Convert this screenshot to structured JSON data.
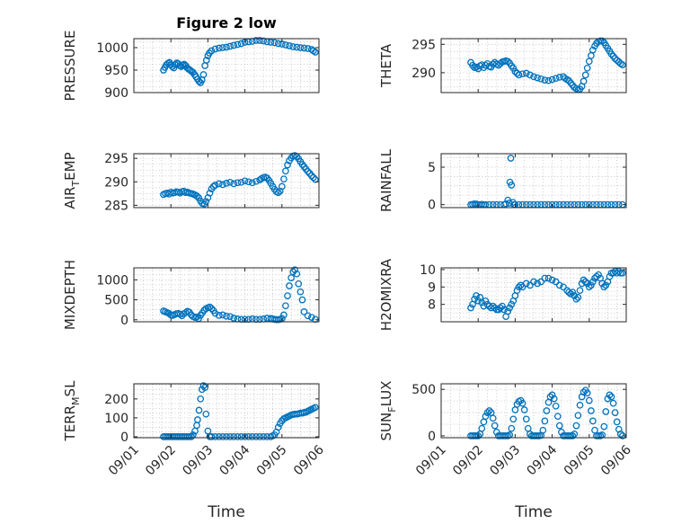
{
  "figure": {
    "title": "Figure 2 low",
    "xlabel": "Time",
    "x_tick_labels": [
      "09/01",
      "09/02",
      "09/03",
      "09/04",
      "09/05",
      "09/06"
    ],
    "marker_color": "#0072bd",
    "marker": "open-circle"
  },
  "chart_data": [
    {
      "type": "scatter",
      "ylabel": "PRESSURE",
      "title": "Figure 2 low",
      "xlim": [
        1,
        6
      ],
      "ylim": [
        900,
        1020
      ],
      "yticks": [
        900,
        950,
        1000
      ],
      "grid": true,
      "x": [
        1.8,
        1.84,
        1.88,
        1.92,
        1.96,
        2.0,
        2.04,
        2.08,
        2.12,
        2.16,
        2.2,
        2.24,
        2.28,
        2.32,
        2.36,
        2.4,
        2.44,
        2.48,
        2.52,
        2.56,
        2.6,
        2.64,
        2.68,
        2.72,
        2.76,
        2.8,
        2.84,
        2.88,
        2.92,
        2.96,
        3.0,
        3.04,
        3.1,
        3.2,
        3.3,
        3.4,
        3.5,
        3.6,
        3.7,
        3.8,
        3.9,
        4.0,
        4.1,
        4.2,
        4.3,
        4.4,
        4.5,
        4.6,
        4.7,
        4.8,
        4.9,
        5.0,
        5.1,
        5.2,
        5.3,
        5.4,
        5.5,
        5.6,
        5.7,
        5.8,
        5.85,
        5.9
      ],
      "y": [
        950,
        956,
        962,
        965,
        967,
        962,
        958,
        955,
        962,
        966,
        964,
        960,
        958,
        961,
        963,
        960,
        955,
        952,
        950,
        947,
        945,
        940,
        935,
        930,
        925,
        922,
        928,
        940,
        960,
        972,
        982,
        988,
        993,
        997,
        999,
        1000,
        1001,
        1003,
        1005,
        1007,
        1009,
        1012,
        1013,
        1014,
        1016,
        1016,
        1015,
        1013,
        1012,
        1011,
        1009,
        1008,
        1006,
        1004,
        1002,
        1001,
        1000,
        999,
        998,
        996,
        993,
        990
      ]
    },
    {
      "type": "scatter",
      "ylabel": "THETA",
      "xlim": [
        1,
        6
      ],
      "ylim": [
        286.5,
        296
      ],
      "yticks": [
        290,
        295
      ],
      "grid": true,
      "x": [
        1.8,
        1.85,
        1.9,
        1.95,
        2.0,
        2.05,
        2.1,
        2.15,
        2.2,
        2.25,
        2.3,
        2.35,
        2.4,
        2.45,
        2.5,
        2.55,
        2.6,
        2.65,
        2.7,
        2.75,
        2.8,
        2.85,
        2.9,
        2.95,
        3.0,
        3.05,
        3.1,
        3.2,
        3.3,
        3.4,
        3.5,
        3.6,
        3.7,
        3.8,
        3.9,
        4.0,
        4.1,
        4.2,
        4.3,
        4.35,
        4.4,
        4.45,
        4.5,
        4.55,
        4.6,
        4.65,
        4.7,
        4.75,
        4.8,
        4.85,
        4.9,
        4.95,
        5.0,
        5.05,
        5.1,
        5.15,
        5.2,
        5.25,
        5.3,
        5.35,
        5.4,
        5.45,
        5.5,
        5.55,
        5.6,
        5.65,
        5.7,
        5.75,
        5.8,
        5.85,
        5.9
      ],
      "y": [
        291.8,
        291.3,
        290.9,
        291.0,
        290.7,
        291.2,
        291.4,
        290.9,
        291.3,
        291.6,
        291.1,
        291.0,
        291.5,
        291.8,
        291.5,
        291.3,
        291.6,
        291.9,
        292.0,
        292.1,
        292.0,
        291.7,
        291.2,
        290.8,
        290.2,
        289.9,
        289.6,
        289.8,
        289.9,
        289.6,
        289.3,
        289.1,
        288.9,
        288.7,
        288.6,
        288.8,
        289.0,
        289.2,
        289.3,
        289.0,
        288.8,
        288.6,
        288.2,
        287.8,
        287.4,
        287.2,
        287.0,
        287.1,
        287.6,
        288.5,
        289.6,
        290.8,
        292.0,
        293.0,
        294.0,
        294.7,
        295.2,
        295.5,
        295.6,
        295.6,
        295.3,
        294.8,
        294.3,
        293.8,
        293.3,
        292.9,
        292.5,
        292.2,
        291.9,
        291.6,
        291.4
      ]
    },
    {
      "type": "scatter",
      "ylabel": "AIR_TEMP",
      "xlim": [
        1,
        6
      ],
      "ylim": [
        284.5,
        296
      ],
      "yticks": [
        285,
        290,
        295
      ],
      "grid": true,
      "x": [
        1.8,
        1.85,
        1.9,
        1.95,
        2.0,
        2.05,
        2.1,
        2.15,
        2.2,
        2.25,
        2.3,
        2.35,
        2.4,
        2.45,
        2.5,
        2.55,
        2.6,
        2.65,
        2.7,
        2.75,
        2.8,
        2.85,
        2.9,
        2.95,
        3.0,
        3.05,
        3.1,
        3.15,
        3.2,
        3.3,
        3.4,
        3.5,
        3.6,
        3.7,
        3.8,
        3.9,
        4.0,
        4.1,
        4.2,
        4.3,
        4.4,
        4.45,
        4.5,
        4.55,
        4.6,
        4.65,
        4.7,
        4.75,
        4.8,
        4.85,
        4.9,
        4.95,
        5.0,
        5.05,
        5.1,
        5.15,
        5.2,
        5.25,
        5.3,
        5.35,
        5.4,
        5.45,
        5.5,
        5.55,
        5.6,
        5.65,
        5.7,
        5.75,
        5.8,
        5.85,
        5.9
      ],
      "y": [
        287.3,
        287.5,
        287.6,
        287.4,
        287.8,
        287.6,
        287.7,
        287.9,
        287.8,
        287.6,
        287.9,
        288.0,
        287.7,
        287.8,
        287.6,
        287.5,
        287.4,
        287.2,
        287.0,
        286.6,
        285.9,
        285.4,
        285.3,
        285.8,
        286.6,
        287.6,
        288.5,
        289.0,
        289.3,
        289.6,
        289.4,
        289.7,
        289.9,
        289.6,
        289.8,
        289.9,
        290.2,
        290.0,
        289.8,
        290.1,
        290.4,
        290.7,
        290.9,
        291.0,
        290.8,
        290.3,
        289.7,
        289.0,
        288.4,
        287.9,
        287.7,
        288.0,
        289.0,
        290.6,
        292.3,
        293.6,
        294.5,
        295.1,
        295.5,
        295.6,
        295.4,
        294.9,
        294.3,
        293.7,
        293.2,
        292.7,
        292.2,
        291.8,
        291.3,
        290.9,
        290.5
      ]
    },
    {
      "type": "scatter",
      "ylabel": "RAINFALL",
      "xlim": [
        1,
        6
      ],
      "ylim": [
        -0.4,
        6.8
      ],
      "yticks": [
        0,
        5
      ],
      "grid": true,
      "x": [
        1.8,
        1.85,
        1.9,
        1.95,
        2.0,
        2.05,
        2.1,
        2.15,
        2.2,
        2.3,
        2.4,
        2.5,
        2.6,
        2.7,
        2.75,
        2.8,
        2.84,
        2.86,
        2.88,
        2.9,
        2.94,
        2.97,
        3.0,
        3.1,
        3.2,
        3.3,
        3.4,
        3.5,
        3.6,
        3.7,
        3.8,
        3.9,
        4.0,
        4.1,
        4.2,
        4.3,
        4.4,
        4.5,
        4.6,
        4.7,
        4.8,
        4.9,
        5.0,
        5.1,
        5.2,
        5.3,
        5.4,
        5.5,
        5.6,
        5.7,
        5.8,
        5.9
      ],
      "y": [
        0.0,
        0.05,
        0.1,
        0.08,
        0.0,
        0.0,
        0.05,
        0.0,
        0.0,
        0.0,
        0.0,
        0.0,
        0.0,
        0.0,
        0.1,
        0.6,
        0.2,
        3.0,
        6.2,
        2.6,
        0.3,
        0.0,
        0.0,
        0.0,
        0.0,
        0.0,
        0.0,
        0.0,
        0.0,
        0.0,
        0.0,
        0.0,
        0.0,
        0.0,
        0.0,
        0.0,
        0.0,
        0.0,
        0.0,
        0.0,
        0.0,
        0.0,
        0.0,
        0.0,
        0.0,
        0.0,
        0.0,
        0.0,
        0.0,
        0.0,
        0.0,
        0.0
      ]
    },
    {
      "type": "scatter",
      "ylabel": "MIXDEPTH",
      "xlim": [
        1,
        6
      ],
      "ylim": [
        -50,
        1300
      ],
      "yticks": [
        0,
        500,
        1000
      ],
      "grid": true,
      "x": [
        1.8,
        1.85,
        1.9,
        1.95,
        2.0,
        2.05,
        2.1,
        2.15,
        2.2,
        2.25,
        2.3,
        2.35,
        2.4,
        2.45,
        2.5,
        2.55,
        2.6,
        2.65,
        2.7,
        2.75,
        2.8,
        2.85,
        2.9,
        2.95,
        3.0,
        3.05,
        3.1,
        3.15,
        3.2,
        3.3,
        3.4,
        3.5,
        3.6,
        3.7,
        3.8,
        3.9,
        4.0,
        4.1,
        4.2,
        4.3,
        4.4,
        4.5,
        4.6,
        4.7,
        4.75,
        4.8,
        4.85,
        4.9,
        4.95,
        5.0,
        5.05,
        5.1,
        5.15,
        5.2,
        5.25,
        5.3,
        5.35,
        5.4,
        5.45,
        5.5,
        5.55,
        5.6,
        5.7,
        5.8,
        5.9
      ],
      "y": [
        220,
        200,
        180,
        160,
        120,
        110,
        130,
        150,
        160,
        140,
        100,
        150,
        180,
        210,
        190,
        120,
        80,
        60,
        70,
        30,
        110,
        170,
        240,
        280,
        300,
        320,
        280,
        230,
        160,
        110,
        120,
        90,
        80,
        40,
        20,
        10,
        10,
        10,
        20,
        10,
        10,
        20,
        40,
        30,
        20,
        10,
        5,
        5,
        10,
        30,
        120,
        350,
        600,
        850,
        1050,
        1200,
        1250,
        1150,
        900,
        700,
        500,
        200,
        100,
        60,
        10
      ]
    },
    {
      "type": "scatter",
      "ylabel": "H2OMIXRA",
      "xlim": [
        1,
        6
      ],
      "ylim": [
        7.0,
        10.1
      ],
      "yticks": [
        8,
        9,
        10
      ],
      "grid": true,
      "x": [
        1.8,
        1.85,
        1.9,
        1.95,
        2.0,
        2.05,
        2.1,
        2.15,
        2.2,
        2.25,
        2.3,
        2.35,
        2.4,
        2.45,
        2.5,
        2.55,
        2.6,
        2.65,
        2.7,
        2.75,
        2.8,
        2.85,
        2.9,
        2.95,
        3.0,
        3.05,
        3.1,
        3.15,
        3.2,
        3.3,
        3.4,
        3.5,
        3.6,
        3.7,
        3.8,
        3.9,
        4.0,
        4.1,
        4.2,
        4.3,
        4.4,
        4.45,
        4.5,
        4.55,
        4.6,
        4.65,
        4.7,
        4.75,
        4.8,
        4.85,
        4.9,
        4.95,
        5.0,
        5.05,
        5.1,
        5.15,
        5.2,
        5.25,
        5.3,
        5.35,
        5.4,
        5.45,
        5.5,
        5.55,
        5.6,
        5.65,
        5.7,
        5.75,
        5.8,
        5.85,
        5.9
      ],
      "y": [
        7.8,
        8.0,
        8.3,
        8.5,
        8.2,
        8.4,
        8.1,
        7.9,
        8.2,
        8.0,
        7.9,
        7.8,
        7.9,
        7.8,
        7.7,
        7.7,
        7.8,
        7.9,
        7.7,
        7.3,
        7.6,
        7.8,
        8.0,
        8.2,
        8.5,
        8.8,
        9.0,
        9.1,
        9.0,
        9.2,
        9.1,
        9.3,
        9.2,
        9.3,
        9.5,
        9.5,
        9.4,
        9.3,
        9.1,
        9.0,
        8.8,
        8.7,
        8.6,
        8.7,
        8.5,
        8.3,
        8.4,
        8.8,
        9.2,
        9.4,
        9.3,
        9.2,
        9.0,
        9.1,
        9.3,
        9.5,
        9.6,
        9.7,
        9.5,
        9.2,
        9.0,
        9.1,
        9.3,
        9.6,
        9.8,
        9.8,
        9.9,
        9.8,
        9.9,
        9.8,
        9.8
      ]
    },
    {
      "type": "scatter",
      "ylabel": "TERR_MSL",
      "xlim": [
        1,
        6
      ],
      "ylim": [
        -5,
        280
      ],
      "yticks": [
        0,
        100,
        200
      ],
      "grid": true,
      "x": [
        1.8,
        1.85,
        1.9,
        1.95,
        2.0,
        2.05,
        2.1,
        2.15,
        2.2,
        2.25,
        2.3,
        2.35,
        2.4,
        2.45,
        2.5,
        2.55,
        2.6,
        2.65,
        2.7,
        2.72,
        2.76,
        2.8,
        2.84,
        2.88,
        2.92,
        2.95,
        3.0,
        3.05,
        3.1,
        3.2,
        3.3,
        3.4,
        3.5,
        3.6,
        3.7,
        3.8,
        3.9,
        4.0,
        4.1,
        4.2,
        4.3,
        4.4,
        4.5,
        4.6,
        4.7,
        4.75,
        4.8,
        4.85,
        4.9,
        4.95,
        5.0,
        5.05,
        5.1,
        5.15,
        5.2,
        5.25,
        5.3,
        5.35,
        5.4,
        5.45,
        5.5,
        5.55,
        5.6,
        5.65,
        5.7,
        5.75,
        5.8,
        5.85,
        5.9
      ],
      "y": [
        0,
        0,
        0,
        0,
        0,
        0,
        0,
        0,
        0,
        0,
        0,
        0,
        0,
        0,
        0,
        0,
        10,
        30,
        60,
        90,
        140,
        200,
        250,
        270,
        260,
        120,
        30,
        0,
        0,
        0,
        0,
        0,
        0,
        0,
        0,
        0,
        0,
        0,
        0,
        0,
        0,
        0,
        0,
        0,
        0,
        5,
        10,
        25,
        50,
        70,
        85,
        95,
        100,
        105,
        110,
        115,
        118,
        120,
        120,
        122,
        125,
        125,
        128,
        130,
        135,
        140,
        145,
        150,
        155
      ]
    },
    {
      "type": "scatter",
      "ylabel": "SUN_FLUX",
      "xlim": [
        1,
        6
      ],
      "ylim": [
        -20,
        560
      ],
      "yticks": [
        0,
        500
      ],
      "grid": true,
      "x": [
        1.8,
        1.85,
        1.9,
        1.95,
        2.0,
        2.05,
        2.1,
        2.15,
        2.2,
        2.25,
        2.3,
        2.35,
        2.4,
        2.45,
        2.5,
        2.55,
        2.6,
        2.65,
        2.7,
        2.75,
        2.8,
        2.85,
        2.9,
        2.95,
        3.0,
        3.05,
        3.1,
        3.15,
        3.2,
        3.25,
        3.3,
        3.35,
        3.4,
        3.45,
        3.5,
        3.55,
        3.6,
        3.65,
        3.7,
        3.75,
        3.8,
        3.85,
        3.9,
        3.95,
        4.0,
        4.05,
        4.1,
        4.15,
        4.2,
        4.25,
        4.3,
        4.35,
        4.4,
        4.45,
        4.5,
        4.55,
        4.6,
        4.65,
        4.7,
        4.75,
        4.8,
        4.85,
        4.9,
        4.95,
        5.0,
        5.05,
        5.1,
        5.15,
        5.2,
        5.25,
        5.3,
        5.35,
        5.4,
        5.45,
        5.5,
        5.55,
        5.6,
        5.65,
        5.7,
        5.75,
        5.8,
        5.85,
        5.9
      ],
      "y": [
        0,
        0,
        0,
        0,
        0,
        20,
        80,
        150,
        210,
        250,
        270,
        250,
        190,
        110,
        40,
        0,
        0,
        0,
        0,
        0,
        0,
        10,
        80,
        180,
        280,
        340,
        370,
        380,
        350,
        280,
        180,
        80,
        20,
        0,
        0,
        0,
        0,
        0,
        5,
        60,
        160,
        270,
        360,
        420,
        440,
        400,
        320,
        210,
        110,
        40,
        0,
        0,
        0,
        0,
        0,
        0,
        20,
        110,
        220,
        330,
        420,
        470,
        490,
        460,
        380,
        270,
        160,
        60,
        0,
        0,
        0,
        10,
        100,
        260,
        400,
        440,
        420,
        350,
        250,
        150,
        70,
        20,
        0
      ]
    }
  ]
}
